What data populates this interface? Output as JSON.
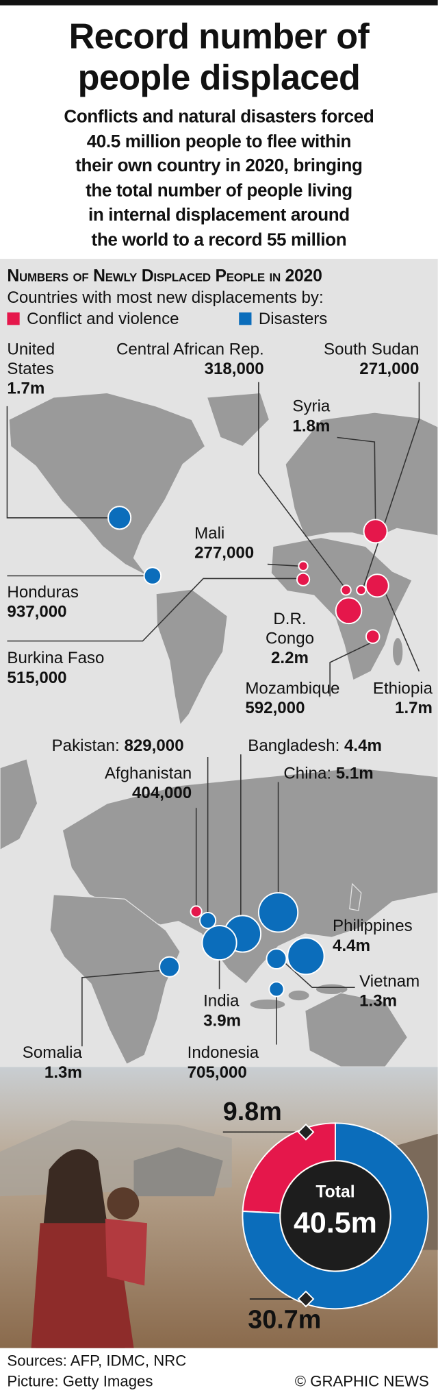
{
  "header": {
    "title_lines": [
      "Record number of",
      "people displaced"
    ],
    "subtitle_lines": [
      "Conflicts and natural disasters forced",
      "40.5 million people to flee within",
      "their own country in 2020, bringing",
      "the total number of people living",
      "in internal displacement around",
      "the world to a record 55 million"
    ]
  },
  "section": {
    "title": "Numbers of Newly Displaced People in 2020",
    "subtitle": "Countries with most new displacements by:"
  },
  "legend": [
    {
      "label": "Conflict and violence",
      "color": "#e5174b"
    },
    {
      "label": "Disasters",
      "color": "#0b6dbb"
    }
  ],
  "maps": [
    {
      "countries": [
        {
          "name": "United States",
          "value": 1700000,
          "value_label": "1.7m",
          "color": "#0b6dbb"
        },
        {
          "name": "Central African Rep.",
          "value": 318000,
          "value_label": "318,000",
          "color": "#e5174b"
        },
        {
          "name": "South Sudan",
          "value": 271000,
          "value_label": "271,000",
          "color": "#e5174b"
        },
        {
          "name": "Syria",
          "value": 1800000,
          "value_label": "1.8m",
          "color": "#e5174b"
        },
        {
          "name": "Mali",
          "value": 277000,
          "value_label": "277,000",
          "color": "#e5174b"
        },
        {
          "name": "Honduras",
          "value": 937000,
          "value_label": "937,000",
          "color": "#0b6dbb"
        },
        {
          "name": "Burkina Faso",
          "value": 515000,
          "value_label": "515,000",
          "color": "#e5174b"
        },
        {
          "name": "D.R. Congo",
          "value": 2200000,
          "value_label": "2.2m",
          "color": "#e5174b"
        },
        {
          "name": "Mozambique",
          "value": 592000,
          "value_label": "592,000",
          "color": "#e5174b"
        },
        {
          "name": "Ethiopia",
          "value": 1700000,
          "value_label": "1.7m",
          "color": "#e5174b"
        }
      ]
    },
    {
      "countries": [
        {
          "name": "Pakistan:",
          "value": 829000,
          "value_label": "829,000",
          "color": "#0b6dbb"
        },
        {
          "name": "Afghanistan",
          "value": 404000,
          "value_label": "404,000",
          "color": "#e5174b"
        },
        {
          "name": "Bangladesh:",
          "value": 4400000,
          "value_label": "4.4m",
          "color": "#0b6dbb"
        },
        {
          "name": "China:",
          "value": 5100000,
          "value_label": "5.1m",
          "color": "#0b6dbb"
        },
        {
          "name": "India",
          "value": 3900000,
          "value_label": "3.9m",
          "color": "#0b6dbb"
        },
        {
          "name": "Philippines",
          "value": 4400000,
          "value_label": "4.4m",
          "color": "#0b6dbb"
        },
        {
          "name": "Vietnam",
          "value": 1300000,
          "value_label": "1.3m",
          "color": "#0b6dbb"
        },
        {
          "name": "Indonesia",
          "value": 705000,
          "value_label": "705,000",
          "color": "#0b6dbb"
        },
        {
          "name": "Somalia",
          "value": 1300000,
          "value_label": "1.3m",
          "color": "#0b6dbb"
        }
      ]
    }
  ],
  "chart_data": {
    "type": "donut",
    "values": [
      9.8,
      30.7
    ],
    "value_labels": [
      "9.8m",
      "30.7m"
    ],
    "colors": [
      "#e5174b",
      "#0b6dbb"
    ],
    "total": 40.5,
    "center_label": "Total",
    "total_label": "40.5m"
  },
  "footer": {
    "sources": "Sources: AFP, IDMC, NRC",
    "picture": "Picture: Getty Images",
    "credit": "© GRAPHIC NEWS"
  }
}
